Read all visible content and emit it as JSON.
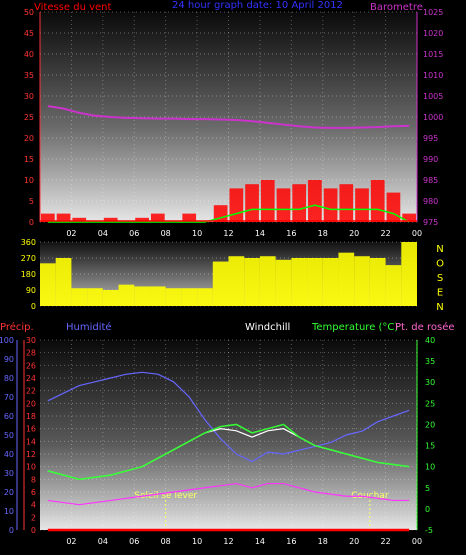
{
  "colors": {
    "wind": "#ff0000",
    "gust": "#ff0000",
    "wind_avg": "#00ff00",
    "barometer": "#cc33cc",
    "direction": "#ffff00",
    "humidity": "#6666ff",
    "temperature": "#33ff33",
    "dewpoint": "#ff33ff",
    "windchill": "#ffffff",
    "precip": "#ff0000",
    "sun": "#ffff66"
  },
  "chart_data": [
    {
      "type": "line",
      "title": "24 hour graph date: 10 April 2012",
      "left_label": "Vitesse du vent",
      "right_label": "Barometre",
      "x_ticks": [
        "02",
        "04",
        "06",
        "08",
        "10",
        "12",
        "14",
        "16",
        "18",
        "20",
        "22",
        "00"
      ],
      "y_left_ticks": [
        "0",
        "5",
        "10",
        "15",
        "20",
        "25",
        "30",
        "35",
        "40",
        "45",
        "50"
      ],
      "y_right_ticks": [
        "975",
        "980",
        "985",
        "990",
        "995",
        "1000",
        "1005",
        "1010",
        "1015",
        "1020",
        "1025"
      ],
      "ylim_left": [
        0,
        50
      ],
      "ylim_right": [
        975,
        1025
      ],
      "barometer_hourly": [
        1002.6,
        1002.0,
        1001.0,
        1000.3,
        1000.0,
        999.8,
        999.7,
        999.6,
        999.6,
        999.5,
        999.5,
        999.4,
        999.3,
        999.0,
        998.6,
        998.2,
        997.8,
        997.5,
        997.4,
        997.4,
        997.5,
        997.6,
        997.8,
        997.9
      ],
      "wind_gust_hourly_max": [
        2,
        2,
        1,
        0,
        1,
        0,
        1,
        2,
        0,
        2,
        0,
        4,
        8,
        9,
        10,
        8,
        9,
        10,
        8,
        9,
        8,
        10,
        7,
        2
      ],
      "wind_avg_hourly": [
        0,
        0,
        0,
        0,
        0,
        0,
        0,
        0,
        0,
        0,
        0,
        1,
        2,
        3,
        3,
        3,
        3,
        4,
        3,
        3,
        3,
        3,
        2,
        0
      ]
    },
    {
      "type": "line",
      "title": "",
      "y_ticks": [
        "0",
        "90",
        "180",
        "270",
        "360"
      ],
      "ylim": [
        0,
        360
      ],
      "compass_labels": [
        "N",
        "O",
        "S",
        "E",
        "N"
      ],
      "direction_hourly": [
        240,
        270,
        100,
        100,
        90,
        120,
        110,
        110,
        100,
        100,
        100,
        250,
        280,
        270,
        280,
        260,
        270,
        270,
        270,
        300,
        280,
        270,
        230,
        360
      ]
    },
    {
      "type": "line",
      "title": "",
      "labels": {
        "precip": "Précip.",
        "humidity": "Humidité",
        "windchill": "Windchill",
        "temperature": "Temperature (°C)",
        "dewpoint": "Pt. de rosée"
      },
      "annotations": {
        "sunrise": "Soleil se lever",
        "sunset": "Couchar"
      },
      "x_ticks": [
        "02",
        "04",
        "06",
        "08",
        "10",
        "12",
        "14",
        "16",
        "18",
        "20",
        "22",
        "00"
      ],
      "humidity_ticks": [
        "0",
        "10",
        "20",
        "30",
        "40",
        "50",
        "60",
        "70",
        "80",
        "90",
        "100"
      ],
      "precip_ticks": [
        "0",
        "2",
        "4",
        "6",
        "8",
        "10",
        "12",
        "14",
        "16",
        "18",
        "20",
        "22",
        "24",
        "26",
        "28",
        "30"
      ],
      "temp_ticks": [
        "-5",
        "0",
        "5",
        "10",
        "15",
        "20",
        "25",
        "30",
        "35",
        "40"
      ],
      "ylim_humidity": [
        0,
        100
      ],
      "ylim_precip": [
        0,
        30
      ],
      "ylim_temp": [
        -5,
        40
      ],
      "humidity_hourly": [
        68,
        72,
        76,
        78,
        80,
        82,
        83,
        82,
        78,
        70,
        58,
        48,
        40,
        36,
        41,
        40,
        42,
        44,
        46,
        50,
        52,
        57,
        60,
        63
      ],
      "temperature_hourly": [
        9,
        8,
        7,
        7.5,
        8,
        9,
        10,
        12,
        14,
        16,
        18,
        19.5,
        20,
        18,
        19,
        20,
        17,
        15,
        14,
        13,
        12,
        11,
        10.5,
        10
      ],
      "windchill_hourly": [
        9,
        8,
        7,
        7.5,
        8,
        9,
        10,
        12,
        14,
        16,
        18,
        19,
        18.5,
        17,
        18.5,
        19,
        17,
        15,
        14,
        13,
        12,
        11,
        10.5,
        10
      ],
      "dewpoint_hourly": [
        2,
        1.5,
        1,
        1.5,
        2,
        2.5,
        3,
        3.5,
        4,
        4.5,
        5,
        5.5,
        6,
        5,
        6,
        6,
        5,
        4,
        3.5,
        3,
        3,
        2.5,
        2,
        2
      ],
      "precip_hourly": [
        0,
        0,
        0,
        0,
        0,
        0,
        0,
        0,
        0,
        0,
        0,
        0,
        0,
        0,
        0,
        0,
        0,
        0,
        0,
        0,
        0,
        0,
        0,
        0
      ],
      "sunrise_time": 8.0,
      "sunset_time": 21.0
    }
  ]
}
